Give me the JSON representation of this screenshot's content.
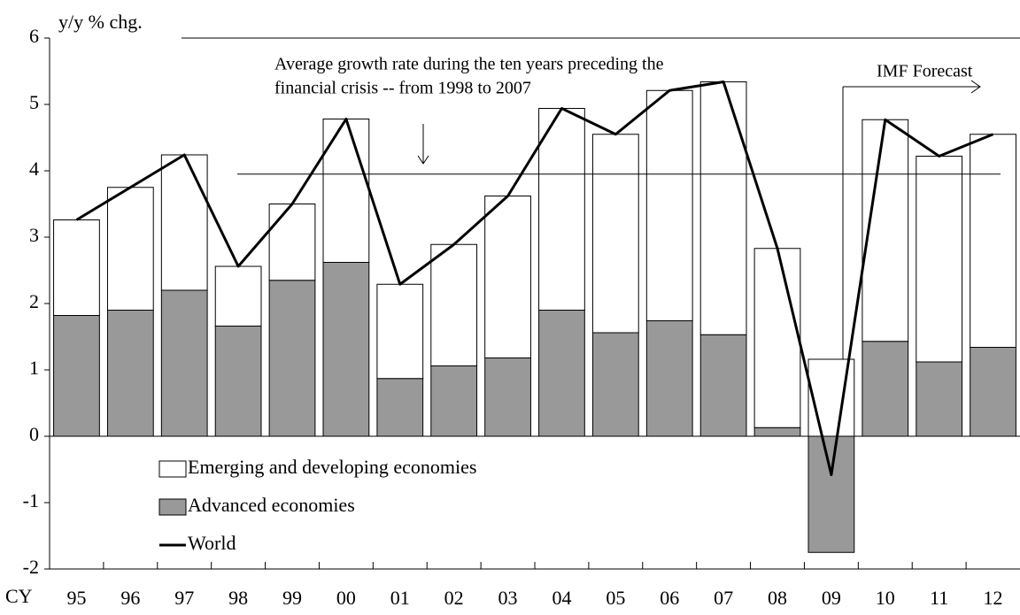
{
  "chart_data": {
    "type": "stacked-bar-line",
    "y_label": "y/y % chg.",
    "x_label": "CY",
    "categories": [
      "95",
      "96",
      "97",
      "98",
      "99",
      "00",
      "01",
      "02",
      "03",
      "04",
      "05",
      "06",
      "07",
      "08",
      "09",
      "10",
      "11",
      "12"
    ],
    "series": [
      {
        "name": "Advanced economies",
        "kind": "bar",
        "color": "#999999",
        "values": [
          1.82,
          1.9,
          2.2,
          1.66,
          2.35,
          2.62,
          0.87,
          1.06,
          1.18,
          1.9,
          1.56,
          1.74,
          1.53,
          0.13,
          -1.75,
          1.43,
          1.12,
          1.34
        ]
      },
      {
        "name": "Emerging and developing economies",
        "kind": "bar",
        "color": "#ffffff",
        "values": [
          1.44,
          1.85,
          2.04,
          0.9,
          1.15,
          2.16,
          1.42,
          1.83,
          2.44,
          3.04,
          2.99,
          3.47,
          3.81,
          2.7,
          1.16,
          3.34,
          3.1,
          3.21
        ]
      },
      {
        "name": "World",
        "kind": "line",
        "color": "#000000",
        "values": [
          3.26,
          3.75,
          4.24,
          2.56,
          3.5,
          4.78,
          2.29,
          2.89,
          3.62,
          4.94,
          4.55,
          5.21,
          5.34,
          2.83,
          -0.58,
          4.77,
          4.22,
          4.55
        ]
      }
    ],
    "ylim": [
      -2,
      6
    ],
    "yticks": [
      -2,
      -1,
      0,
      1,
      2,
      3,
      4,
      5,
      6
    ],
    "average_line": 3.95,
    "annotations": [
      "Average growth rate during the ten years preceding the",
      "financial crisis -- from 1998 to 2007",
      "IMF Forecast"
    ]
  }
}
